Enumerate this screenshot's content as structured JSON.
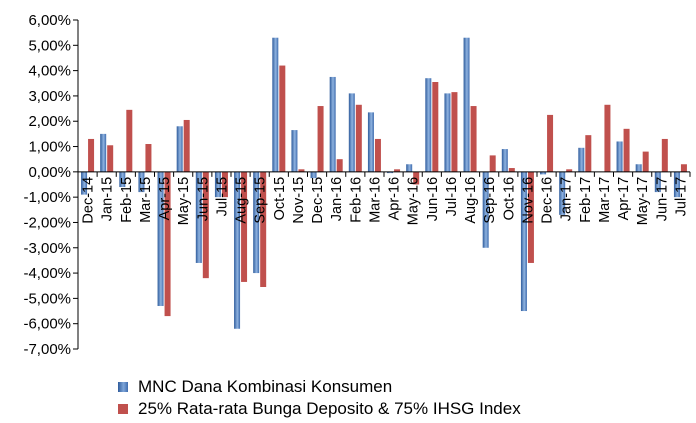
{
  "chart_data": {
    "type": "bar",
    "categories": [
      "Dec-14",
      "Jan-15",
      "Feb-15",
      "Mar-15",
      "Apr-15",
      "May-15",
      "Jun-15",
      "Jul-15",
      "Aug-15",
      "Sep-15",
      "Oct-15",
      "Nov-15",
      "Dec-15",
      "Jan-16",
      "Feb-16",
      "Mar-16",
      "Apr-16",
      "May-16",
      "Jun-16",
      "Jul-16",
      "Aug-16",
      "Sep-16",
      "Oct-16",
      "Nov-16",
      "Dec-16",
      "Jan-17",
      "Feb-17",
      "Mar-17",
      "Apr-17",
      "May-17",
      "Jun-17",
      "Jul-17"
    ],
    "series": [
      {
        "name": "MNC Dana Kombinasi Konsumen",
        "color": "#4f81bd",
        "values": [
          -0.9,
          1.5,
          -0.6,
          -0.8,
          -5.3,
          1.8,
          -3.6,
          -1.0,
          -6.2,
          -4.0,
          5.3,
          1.65,
          -0.25,
          3.75,
          3.1,
          2.35,
          -0.05,
          0.3,
          3.7,
          3.1,
          5.3,
          -3.0,
          0.9,
          -5.5,
          -0.1,
          -1.7,
          0.95,
          0.0,
          1.2,
          0.3,
          -0.8,
          -1.0
        ]
      },
      {
        "name": "25% Rata-rata Bunga Deposito & 75% IHSG Index",
        "color": "#c0504d",
        "values": [
          1.3,
          1.05,
          2.45,
          1.1,
          -5.7,
          2.05,
          -4.2,
          -1.0,
          -4.35,
          -4.55,
          4.2,
          0.1,
          2.6,
          0.5,
          2.65,
          1.3,
          0.1,
          -0.5,
          3.55,
          3.15,
          2.6,
          0.65,
          0.15,
          -3.6,
          2.25,
          0.1,
          1.45,
          2.65,
          1.7,
          0.8,
          1.3,
          0.3
        ]
      }
    ],
    "ylim": [
      -7,
      6
    ],
    "yticks": [
      "6,00%",
      "5,00%",
      "4,00%",
      "3,00%",
      "2,00%",
      "1,00%",
      "0,00%",
      "-1,00%",
      "-2,00%",
      "-3,00%",
      "-4,00%",
      "-5,00%",
      "-6,00%",
      "-7,00%"
    ],
    "title": "",
    "xlabel": "",
    "ylabel": "",
    "grid": false,
    "legend_position": "bottom-left"
  }
}
